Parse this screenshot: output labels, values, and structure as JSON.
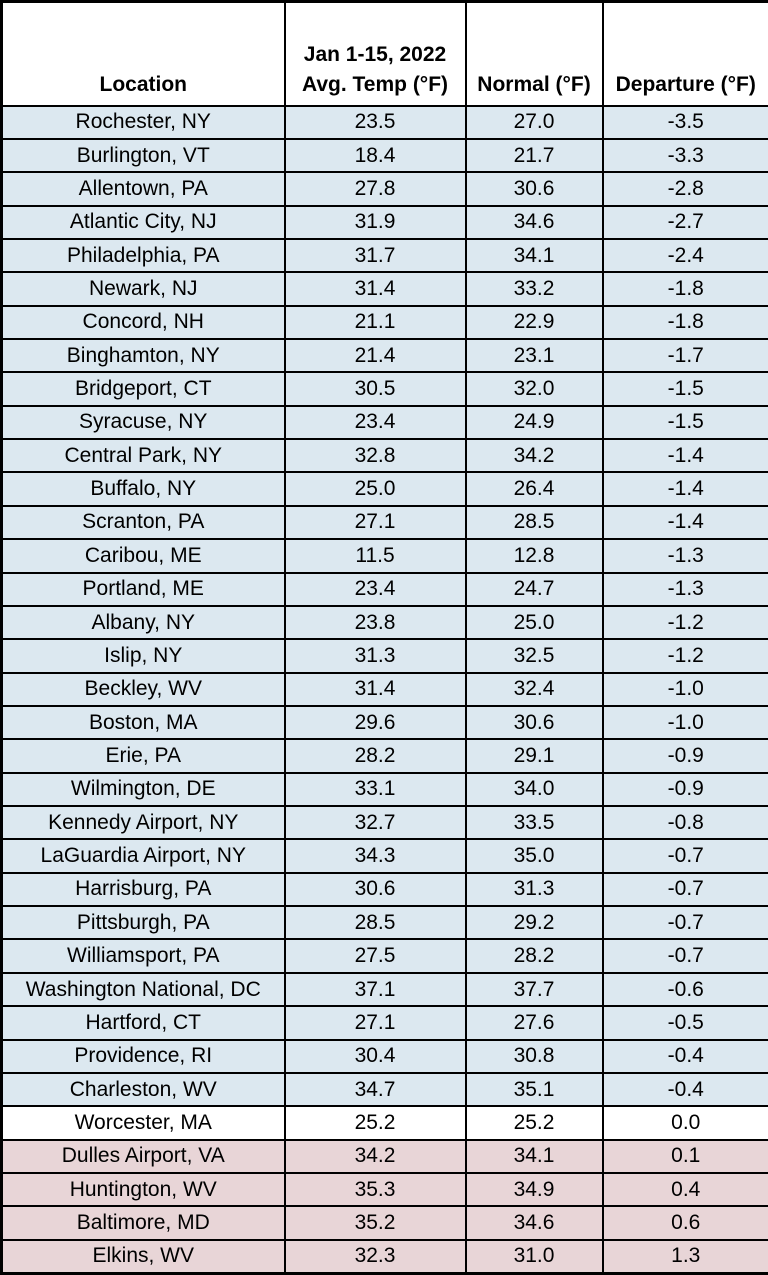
{
  "colors": {
    "negative_row_fill": "#dce8f0",
    "zero_row_fill": "#ffffff",
    "positive_row_fill": "#e8d5d7",
    "grid_border": "#000000",
    "text": "#000000"
  },
  "table": {
    "header": {
      "location": "Location",
      "avg_line1": "Jan 1-15, 2022",
      "avg_line2": "Avg. Temp (°F)",
      "normal": "Normal (°F)",
      "departure": "Departure (°F)"
    },
    "rows": [
      {
        "location": "Rochester, NY",
        "avg": "23.5",
        "normal": "27.0",
        "departure": "-3.5",
        "tint": "negative"
      },
      {
        "location": "Burlington, VT",
        "avg": "18.4",
        "normal": "21.7",
        "departure": "-3.3",
        "tint": "negative"
      },
      {
        "location": "Allentown, PA",
        "avg": "27.8",
        "normal": "30.6",
        "departure": "-2.8",
        "tint": "negative"
      },
      {
        "location": "Atlantic City, NJ",
        "avg": "31.9",
        "normal": "34.6",
        "departure": "-2.7",
        "tint": "negative"
      },
      {
        "location": "Philadelphia, PA",
        "avg": "31.7",
        "normal": "34.1",
        "departure": "-2.4",
        "tint": "negative"
      },
      {
        "location": "Newark, NJ",
        "avg": "31.4",
        "normal": "33.2",
        "departure": "-1.8",
        "tint": "negative"
      },
      {
        "location": "Concord, NH",
        "avg": "21.1",
        "normal": "22.9",
        "departure": "-1.8",
        "tint": "negative"
      },
      {
        "location": "Binghamton, NY",
        "avg": "21.4",
        "normal": "23.1",
        "departure": "-1.7",
        "tint": "negative"
      },
      {
        "location": "Bridgeport, CT",
        "avg": "30.5",
        "normal": "32.0",
        "departure": "-1.5",
        "tint": "negative"
      },
      {
        "location": "Syracuse, NY",
        "avg": "23.4",
        "normal": "24.9",
        "departure": "-1.5",
        "tint": "negative"
      },
      {
        "location": "Central Park, NY",
        "avg": "32.8",
        "normal": "34.2",
        "departure": "-1.4",
        "tint": "negative"
      },
      {
        "location": "Buffalo, NY",
        "avg": "25.0",
        "normal": "26.4",
        "departure": "-1.4",
        "tint": "negative"
      },
      {
        "location": "Scranton, PA",
        "avg": "27.1",
        "normal": "28.5",
        "departure": "-1.4",
        "tint": "negative"
      },
      {
        "location": "Caribou, ME",
        "avg": "11.5",
        "normal": "12.8",
        "departure": "-1.3",
        "tint": "negative"
      },
      {
        "location": "Portland, ME",
        "avg": "23.4",
        "normal": "24.7",
        "departure": "-1.3",
        "tint": "negative"
      },
      {
        "location": "Albany, NY",
        "avg": "23.8",
        "normal": "25.0",
        "departure": "-1.2",
        "tint": "negative"
      },
      {
        "location": "Islip, NY",
        "avg": "31.3",
        "normal": "32.5",
        "departure": "-1.2",
        "tint": "negative"
      },
      {
        "location": "Beckley, WV",
        "avg": "31.4",
        "normal": "32.4",
        "departure": "-1.0",
        "tint": "negative"
      },
      {
        "location": "Boston, MA",
        "avg": "29.6",
        "normal": "30.6",
        "departure": "-1.0",
        "tint": "negative"
      },
      {
        "location": "Erie, PA",
        "avg": "28.2",
        "normal": "29.1",
        "departure": "-0.9",
        "tint": "negative"
      },
      {
        "location": "Wilmington, DE",
        "avg": "33.1",
        "normal": "34.0",
        "departure": "-0.9",
        "tint": "negative"
      },
      {
        "location": "Kennedy Airport, NY",
        "avg": "32.7",
        "normal": "33.5",
        "departure": "-0.8",
        "tint": "negative"
      },
      {
        "location": "LaGuardia Airport, NY",
        "avg": "34.3",
        "normal": "35.0",
        "departure": "-0.7",
        "tint": "negative"
      },
      {
        "location": "Harrisburg, PA",
        "avg": "30.6",
        "normal": "31.3",
        "departure": "-0.7",
        "tint": "negative"
      },
      {
        "location": "Pittsburgh, PA",
        "avg": "28.5",
        "normal": "29.2",
        "departure": "-0.7",
        "tint": "negative"
      },
      {
        "location": "Williamsport, PA",
        "avg": "27.5",
        "normal": "28.2",
        "departure": "-0.7",
        "tint": "negative"
      },
      {
        "location": "Washington National, DC",
        "avg": "37.1",
        "normal": "37.7",
        "departure": "-0.6",
        "tint": "negative"
      },
      {
        "location": "Hartford, CT",
        "avg": "27.1",
        "normal": "27.6",
        "departure": "-0.5",
        "tint": "negative"
      },
      {
        "location": "Providence, RI",
        "avg": "30.4",
        "normal": "30.8",
        "departure": "-0.4",
        "tint": "negative"
      },
      {
        "location": "Charleston, WV",
        "avg": "34.7",
        "normal": "35.1",
        "departure": "-0.4",
        "tint": "negative"
      },
      {
        "location": "Worcester, MA",
        "avg": "25.2",
        "normal": "25.2",
        "departure": "0.0",
        "tint": "zero"
      },
      {
        "location": "Dulles Airport, VA",
        "avg": "34.2",
        "normal": "34.1",
        "departure": "0.1",
        "tint": "positive"
      },
      {
        "location": "Huntington, WV",
        "avg": "35.3",
        "normal": "34.9",
        "departure": "0.4",
        "tint": "positive"
      },
      {
        "location": "Baltimore, MD",
        "avg": "35.2",
        "normal": "34.6",
        "departure": "0.6",
        "tint": "positive"
      },
      {
        "location": "Elkins, WV",
        "avg": "32.3",
        "normal": "31.0",
        "departure": "1.3",
        "tint": "positive"
      }
    ]
  },
  "chart_data": {
    "type": "table",
    "title": "Jan 1-15, 2022 Avg. Temp vs Normal by Location",
    "columns": [
      "Location",
      "Jan 1-15, 2022 Avg. Temp (°F)",
      "Normal (°F)",
      "Departure (°F)"
    ],
    "rows": [
      [
        "Rochester, NY",
        23.5,
        27.0,
        -3.5
      ],
      [
        "Burlington, VT",
        18.4,
        21.7,
        -3.3
      ],
      [
        "Allentown, PA",
        27.8,
        30.6,
        -2.8
      ],
      [
        "Atlantic City, NJ",
        31.9,
        34.6,
        -2.7
      ],
      [
        "Philadelphia, PA",
        31.7,
        34.1,
        -2.4
      ],
      [
        "Newark, NJ",
        31.4,
        33.2,
        -1.8
      ],
      [
        "Concord, NH",
        21.1,
        22.9,
        -1.8
      ],
      [
        "Binghamton, NY",
        21.4,
        23.1,
        -1.7
      ],
      [
        "Bridgeport, CT",
        30.5,
        32.0,
        -1.5
      ],
      [
        "Syracuse, NY",
        23.4,
        24.9,
        -1.5
      ],
      [
        "Central Park, NY",
        32.8,
        34.2,
        -1.4
      ],
      [
        "Buffalo, NY",
        25.0,
        26.4,
        -1.4
      ],
      [
        "Scranton, PA",
        27.1,
        28.5,
        -1.4
      ],
      [
        "Caribou, ME",
        11.5,
        12.8,
        -1.3
      ],
      [
        "Portland, ME",
        23.4,
        24.7,
        -1.3
      ],
      [
        "Albany, NY",
        23.8,
        25.0,
        -1.2
      ],
      [
        "Islip, NY",
        31.3,
        32.5,
        -1.2
      ],
      [
        "Beckley, WV",
        31.4,
        32.4,
        -1.0
      ],
      [
        "Boston, MA",
        29.6,
        30.6,
        -1.0
      ],
      [
        "Erie, PA",
        28.2,
        29.1,
        -0.9
      ],
      [
        "Wilmington, DE",
        33.1,
        34.0,
        -0.9
      ],
      [
        "Kennedy Airport, NY",
        32.7,
        33.5,
        -0.8
      ],
      [
        "LaGuardia Airport, NY",
        34.3,
        35.0,
        -0.7
      ],
      [
        "Harrisburg, PA",
        30.6,
        31.3,
        -0.7
      ],
      [
        "Pittsburgh, PA",
        28.5,
        29.2,
        -0.7
      ],
      [
        "Williamsport, PA",
        27.5,
        28.2,
        -0.7
      ],
      [
        "Washington National, DC",
        37.1,
        37.7,
        -0.6
      ],
      [
        "Hartford, CT",
        27.1,
        27.6,
        -0.5
      ],
      [
        "Providence, RI",
        30.4,
        30.8,
        -0.4
      ],
      [
        "Charleston, WV",
        34.7,
        35.1,
        -0.4
      ],
      [
        "Worcester, MA",
        25.2,
        25.2,
        0.0
      ],
      [
        "Dulles Airport, VA",
        34.2,
        34.1,
        0.1
      ],
      [
        "Huntington, WV",
        35.3,
        34.9,
        0.4
      ],
      [
        "Baltimore, MD",
        35.2,
        34.6,
        0.6
      ],
      [
        "Elkins, WV",
        32.3,
        31.0,
        1.3
      ]
    ],
    "row_color_rule": "departure < 0 → light blue; departure = 0 → white; departure > 0 → light pink"
  }
}
